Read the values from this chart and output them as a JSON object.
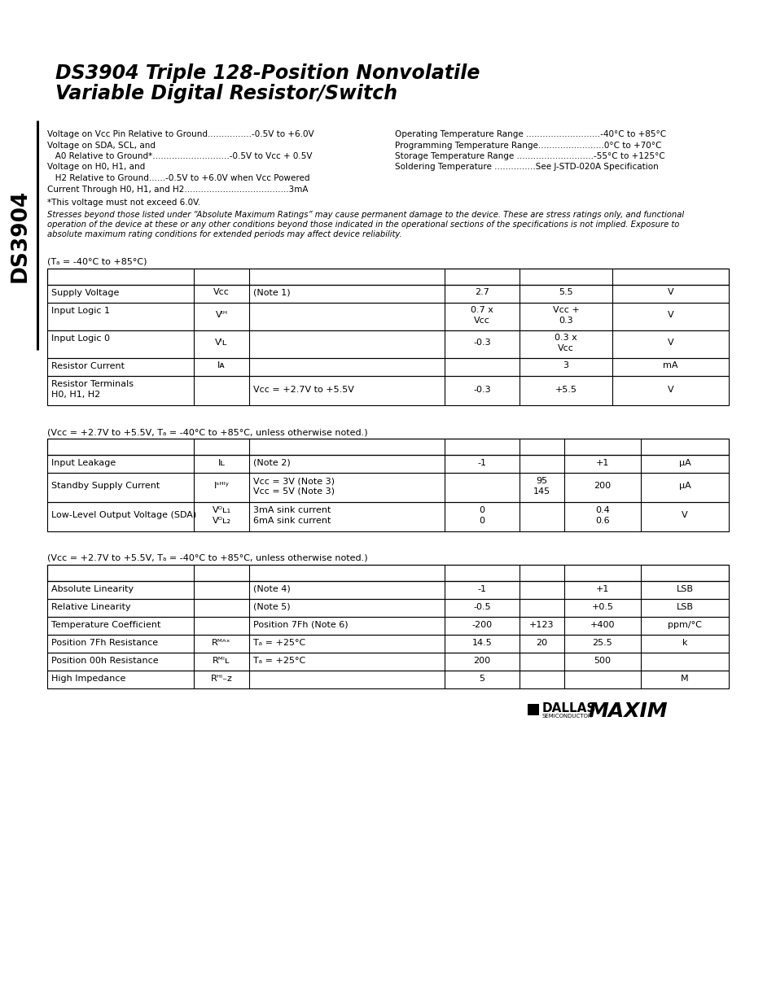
{
  "title_line1": "DS3904 Triple 128-Position Nonvolatile",
  "title_line2": "Variable Digital Resistor/Switch",
  "side_label": "DS3904",
  "abs_left_lines": [
    "Voltage on Vᴄᴄ Pin Relative to Ground................-0.5V to +6.0V",
    "Voltage on SDA, SCL, and",
    "   A0 Relative to Ground*............................-0.5V to Vᴄᴄ + 0.5V",
    "Voltage on H0, H1, and",
    "   H2 Relative to Ground......-0.5V to +6.0V when Vᴄᴄ Powered",
    "Current Through H0, H1, and H2......................................3mA"
  ],
  "abs_right_lines": [
    "Operating Temperature Range ...........................-40°C to +85°C",
    "Programming Temperature Range........................0°C to +70°C",
    "Storage Temperature Range ............................-55°C to +125°C",
    "Soldering Temperature ...............See J-STD-020A Specification"
  ],
  "footnote": "*This voltage must not exceed 6.0V.",
  "stress_note_lines": [
    "Stresses beyond those listed under “Absolute Maximum Ratings” may cause permanent damage to the device. These are stress ratings only, and functional",
    "operation of the device at these or any other conditions beyond those indicated in the operational sections of the specifications is not implied. Exposure to",
    "absolute maximum rating conditions for extended periods may affect device reliability."
  ],
  "table1_cond": "(Tₐ = -40°C to +85°C)",
  "table2_cond": "(Vᴄᴄ = +2.7V to +5.5V, Tₐ = -40°C to +85°C, unless otherwise noted.)",
  "table3_cond": "(Vᴄᴄ = +2.7V to +5.5V, Tₐ = -40°C to +85°C, unless otherwise noted.)"
}
